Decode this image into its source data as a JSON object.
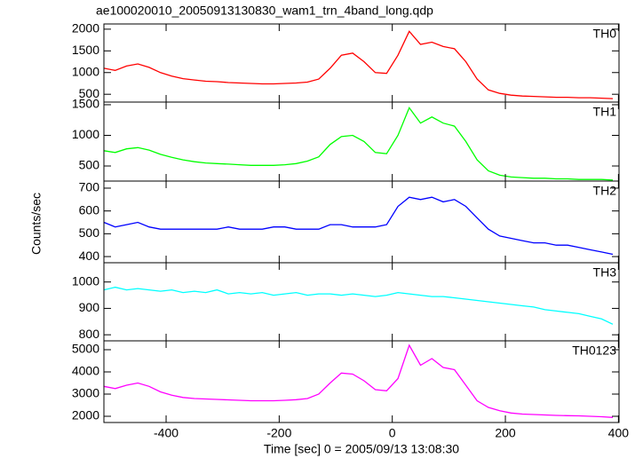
{
  "title": "ae100020010_20050913130830_wam1_trn_4band_long.qdp",
  "x_label": "Time [sec] 0 = 2005/09/13 13:08:30",
  "y_label": "Counts/sec",
  "x": [
    -510,
    -490,
    -470,
    -450,
    -430,
    -410,
    -390,
    -370,
    -350,
    -330,
    -310,
    -290,
    -270,
    -250,
    -230,
    -210,
    -190,
    -170,
    -150,
    -130,
    -110,
    -90,
    -70,
    -50,
    -30,
    -10,
    10,
    30,
    50,
    70,
    90,
    110,
    130,
    150,
    170,
    190,
    210,
    230,
    250,
    270,
    290,
    310,
    330,
    350,
    370,
    390
  ],
  "xlim": [
    -510,
    401
  ],
  "xticks": [
    -400,
    -200,
    0,
    200,
    400
  ],
  "chart_data": [
    {
      "type": "line",
      "ylim": [
        320,
        2120
      ],
      "yticks": [
        500,
        1000,
        1500,
        2000
      ],
      "series": [
        {
          "name": "TH0",
          "color": "#ff0000",
          "values": [
            1100,
            1050,
            1150,
            1200,
            1120,
            1000,
            920,
            860,
            830,
            800,
            790,
            770,
            760,
            750,
            740,
            740,
            750,
            760,
            780,
            850,
            1100,
            1400,
            1450,
            1250,
            1000,
            980,
            1400,
            1950,
            1650,
            1700,
            1600,
            1550,
            1250,
            850,
            600,
            520,
            480,
            460,
            450,
            440,
            430,
            430,
            420,
            420,
            410,
            400
          ]
        }
      ]
    },
    {
      "type": "line",
      "ylim": [
        254,
        1543
      ],
      "yticks": [
        500,
        1000,
        1500
      ],
      "series": [
        {
          "name": "TH1",
          "color": "#00ff00",
          "values": [
            750,
            720,
            780,
            800,
            760,
            690,
            640,
            600,
            570,
            550,
            540,
            530,
            520,
            510,
            510,
            510,
            520,
            540,
            580,
            650,
            850,
            980,
            1000,
            900,
            720,
            700,
            1000,
            1450,
            1200,
            1300,
            1200,
            1150,
            900,
            600,
            420,
            350,
            320,
            310,
            300,
            300,
            290,
            290,
            280,
            280,
            280,
            270
          ]
        }
      ]
    },
    {
      "type": "line",
      "ylim": [
        373,
        731
      ],
      "yticks": [
        400,
        500,
        600,
        700
      ],
      "series": [
        {
          "name": "TH2",
          "color": "#0000ff",
          "values": [
            550,
            530,
            540,
            550,
            530,
            520,
            520,
            520,
            520,
            520,
            520,
            530,
            520,
            520,
            520,
            530,
            530,
            520,
            520,
            520,
            540,
            540,
            530,
            530,
            530,
            540,
            620,
            660,
            650,
            660,
            640,
            650,
            620,
            570,
            520,
            490,
            480,
            470,
            460,
            460,
            450,
            450,
            440,
            430,
            420,
            410
          ]
        }
      ]
    },
    {
      "type": "line",
      "ylim": [
        777,
        1073
      ],
      "yticks": [
        800,
        900,
        1000
      ],
      "series": [
        {
          "name": "TH3",
          "color": "#00ffff",
          "values": [
            970,
            980,
            970,
            975,
            970,
            965,
            970,
            960,
            965,
            960,
            970,
            955,
            960,
            955,
            960,
            950,
            955,
            960,
            950,
            955,
            955,
            950,
            955,
            950,
            945,
            950,
            960,
            955,
            950,
            945,
            945,
            940,
            935,
            930,
            925,
            920,
            915,
            910,
            905,
            895,
            890,
            885,
            880,
            870,
            860,
            840
          ]
        }
      ]
    },
    {
      "type": "line",
      "ylim": [
        1720,
        5400
      ],
      "yticks": [
        2000,
        3000,
        4000,
        5000
      ],
      "series": [
        {
          "name": "TH0123",
          "color": "#ff00ff",
          "values": [
            3350,
            3250,
            3400,
            3500,
            3350,
            3100,
            2950,
            2850,
            2800,
            2780,
            2760,
            2740,
            2720,
            2700,
            2700,
            2700,
            2720,
            2750,
            2800,
            3000,
            3500,
            3950,
            3900,
            3600,
            3200,
            3150,
            3700,
            5200,
            4300,
            4600,
            4200,
            4100,
            3400,
            2700,
            2400,
            2250,
            2150,
            2100,
            2080,
            2060,
            2040,
            2030,
            2020,
            2000,
            1980,
            1950
          ]
        }
      ]
    }
  ]
}
